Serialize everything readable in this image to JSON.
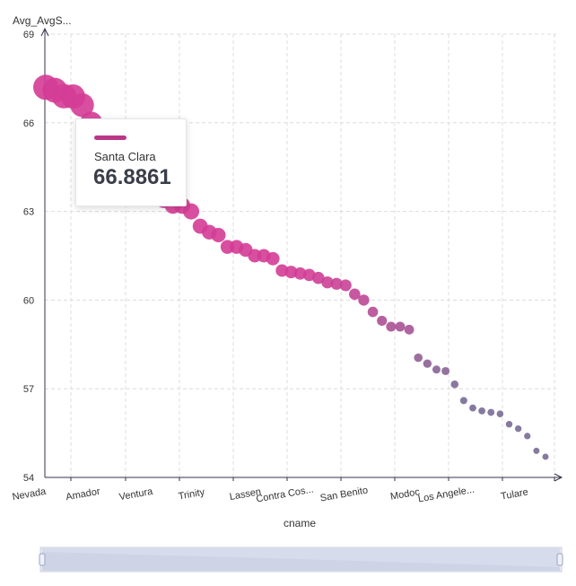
{
  "chart_data": {
    "type": "scatter",
    "ylabel": "Avg_AvgS...",
    "xlabel": "cname",
    "ylim": [
      54,
      69
    ],
    "y_ticks": [
      54,
      57,
      60,
      63,
      66,
      69
    ],
    "x_tick_labels": [
      "Nevada",
      "Amador",
      "Ventura",
      "Trinity",
      "Lassen",
      "Contra Cos...",
      "San Benito",
      "Modoc",
      "Los Angele...",
      "Tulare"
    ],
    "grid": true,
    "points": [
      {
        "x": "Nevada",
        "y": 67.2
      },
      {
        "x": "",
        "y": 67.1
      },
      {
        "x": "",
        "y": 66.9
      },
      {
        "x": "",
        "y": 66.8861
      },
      {
        "x": "",
        "y": 66.6
      },
      {
        "x": "Amador",
        "y": 66.0
      },
      {
        "x": "",
        "y": 65.6
      },
      {
        "x": "",
        "y": 65.2
      },
      {
        "x": "",
        "y": 64.9
      },
      {
        "x": "",
        "y": 64.6
      },
      {
        "x": "Ventura",
        "y": 64.3
      },
      {
        "x": "",
        "y": 64.0
      },
      {
        "x": "",
        "y": 63.7
      },
      {
        "x": "",
        "y": 63.4
      },
      {
        "x": "",
        "y": 63.2
      },
      {
        "x": "Trinity",
        "y": 63.2
      },
      {
        "x": "",
        "y": 63.0
      },
      {
        "x": "",
        "y": 62.5
      },
      {
        "x": "",
        "y": 62.3
      },
      {
        "x": "",
        "y": 62.2
      },
      {
        "x": "",
        "y": 61.8
      },
      {
        "x": "Lassen",
        "y": 61.8
      },
      {
        "x": "",
        "y": 61.7
      },
      {
        "x": "",
        "y": 61.5
      },
      {
        "x": "",
        "y": 61.5
      },
      {
        "x": "",
        "y": 61.4
      },
      {
        "x": "Contra Cos...",
        "y": 61.0
      },
      {
        "x": "",
        "y": 60.95
      },
      {
        "x": "",
        "y": 60.9
      },
      {
        "x": "",
        "y": 60.85
      },
      {
        "x": "",
        "y": 60.75
      },
      {
        "x": "",
        "y": 60.6
      },
      {
        "x": "",
        "y": 60.55
      },
      {
        "x": "",
        "y": 60.5
      },
      {
        "x": "San Benito",
        "y": 60.2
      },
      {
        "x": "",
        "y": 60.0
      },
      {
        "x": "",
        "y": 59.6
      },
      {
        "x": "",
        "y": 59.3
      },
      {
        "x": "",
        "y": 59.1
      },
      {
        "x": "",
        "y": 59.1
      },
      {
        "x": "Modoc",
        "y": 59.0
      },
      {
        "x": "",
        "y": 58.05
      },
      {
        "x": "",
        "y": 57.85
      },
      {
        "x": "",
        "y": 57.65
      },
      {
        "x": "",
        "y": 57.6
      },
      {
        "x": "Los Angele...",
        "y": 57.15
      },
      {
        "x": "",
        "y": 56.6
      },
      {
        "x": "",
        "y": 56.35
      },
      {
        "x": "",
        "y": 56.25
      },
      {
        "x": "",
        "y": 56.2
      },
      {
        "x": "",
        "y": 56.15
      },
      {
        "x": "Tulare",
        "y": 55.8
      },
      {
        "x": "",
        "y": 55.65
      },
      {
        "x": "",
        "y": 55.4
      },
      {
        "x": "",
        "y": 54.9
      },
      {
        "x": "",
        "y": 54.7
      }
    ],
    "tooltip": {
      "name": "Santa Clara",
      "value": "66.8861",
      "color": "#b83887"
    },
    "colors": {
      "high": "#d43c95",
      "low": "#7a6b96",
      "axis": "#33334d",
      "grid": "#dcdcdc"
    }
  }
}
